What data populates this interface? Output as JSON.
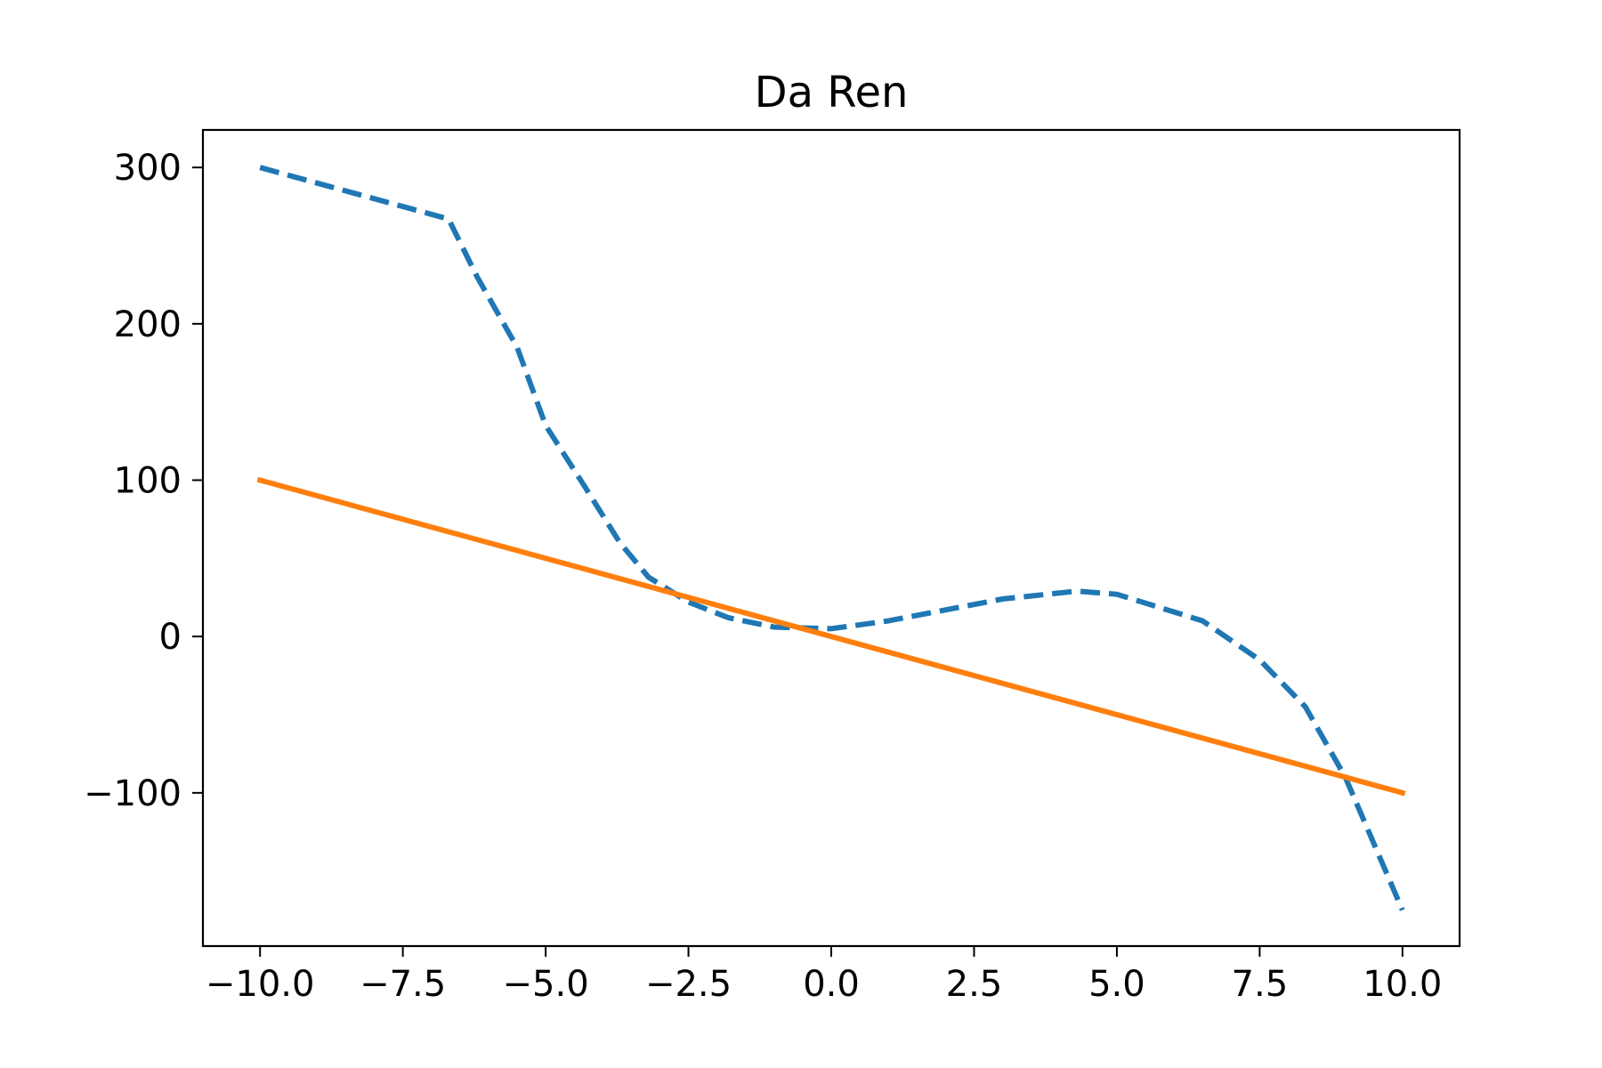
{
  "chart_data": {
    "type": "line",
    "title": "Da Ren",
    "xlabel": "",
    "ylabel": "",
    "xlim": [
      -11,
      11
    ],
    "ylim": [
      -198,
      324
    ],
    "x_ticks": [
      -10.0,
      -7.5,
      -5.0,
      -2.5,
      0.0,
      2.5,
      5.0,
      7.5,
      10.0
    ],
    "x_tick_labels": [
      "−10.0",
      "−7.5",
      "−5.0",
      "−2.5",
      "0.0",
      "2.5",
      "5.0",
      "7.5",
      "10.0"
    ],
    "y_ticks": [
      -100,
      0,
      100,
      200,
      300
    ],
    "y_tick_labels": [
      "−100",
      "0",
      "100",
      "200",
      "300"
    ],
    "grid": false,
    "legend": "none",
    "series": [
      {
        "style": "dashed",
        "color": "#1f77b4",
        "points": [
          [
            -10.0,
            300
          ],
          [
            -6.7,
            267
          ],
          [
            -6.2,
            230
          ],
          [
            -5.5,
            185
          ],
          [
            -5.0,
            135
          ],
          [
            -4.3,
            95
          ],
          [
            -3.7,
            60
          ],
          [
            -3.2,
            38
          ],
          [
            -2.5,
            22
          ],
          [
            -1.8,
            12
          ],
          [
            -1.0,
            6
          ],
          [
            0.0,
            5
          ],
          [
            1.0,
            10
          ],
          [
            2.0,
            17
          ],
          [
            3.0,
            24
          ],
          [
            4.3,
            29
          ],
          [
            5.0,
            27
          ],
          [
            6.5,
            10
          ],
          [
            7.5,
            -15
          ],
          [
            8.3,
            -45
          ],
          [
            9.0,
            -90
          ],
          [
            10.0,
            -175
          ]
        ]
      },
      {
        "style": "solid",
        "color": "#ff7f0e",
        "points": [
          [
            -10.0,
            100
          ],
          [
            10.0,
            -100
          ]
        ]
      }
    ]
  }
}
